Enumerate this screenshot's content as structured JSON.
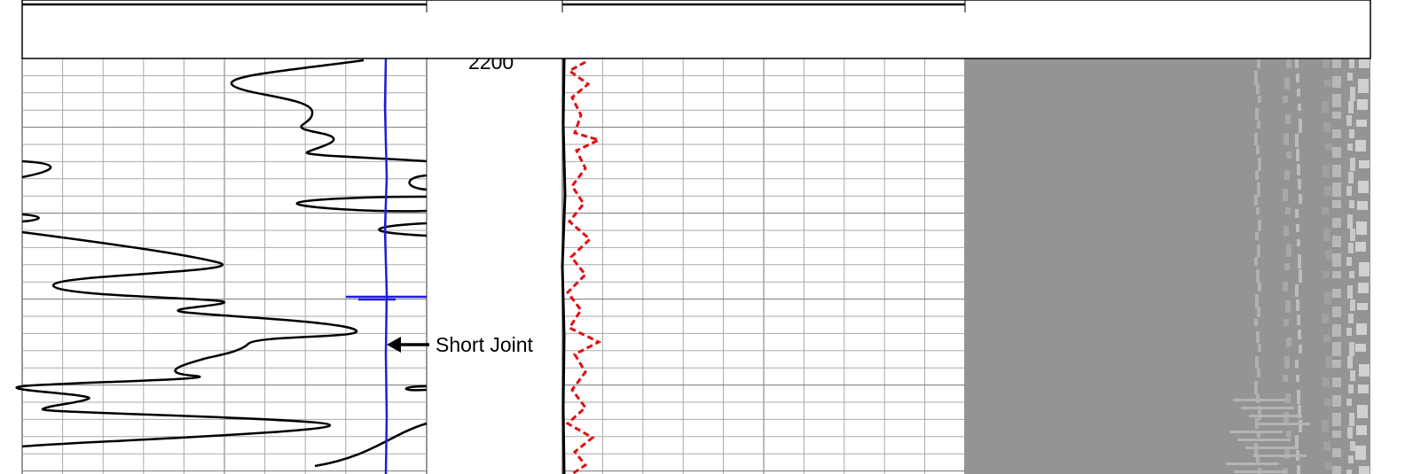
{
  "depth_label": "2200",
  "annotation": "Short Joint"
}
